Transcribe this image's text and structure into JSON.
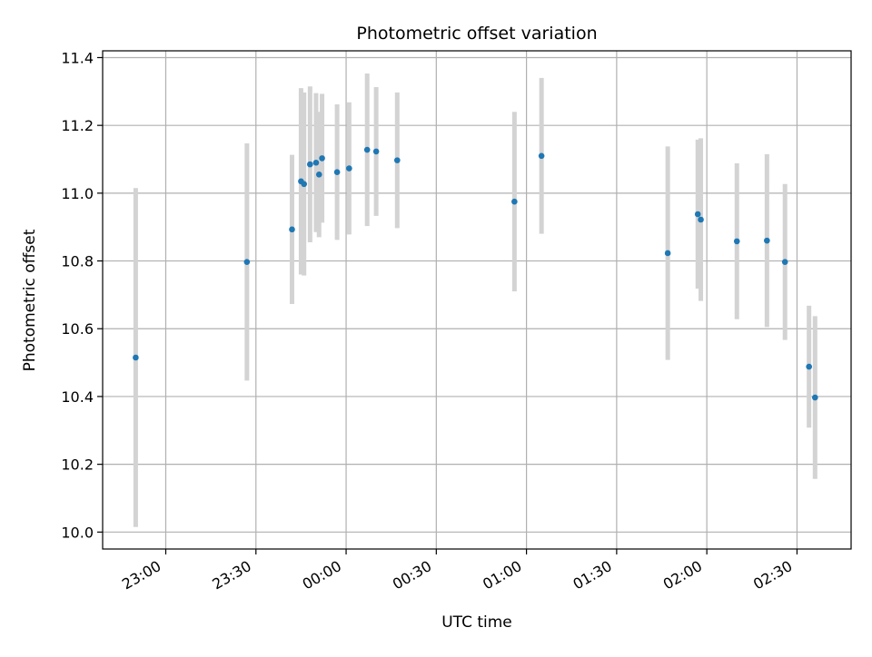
{
  "chart_data": {
    "type": "scatter",
    "title": "Photometric offset variation",
    "xlabel": "UTC time",
    "ylabel": "Photometric offset",
    "x_ticks": [
      "23:00",
      "23:30",
      "00:00",
      "00:30",
      "01:00",
      "01:30",
      "02:00",
      "02:30"
    ],
    "y_ticks": [
      "10.0",
      "10.2",
      "10.4",
      "10.6",
      "10.8",
      "11.0",
      "11.2",
      "11.4"
    ],
    "xlim": [
      "22:39",
      "02:48"
    ],
    "ylim": [
      9.95,
      11.42
    ],
    "grid": true,
    "point_color": "#1f77b4",
    "errorbar_color": "#d3d3d3",
    "points": [
      {
        "x": "22:50",
        "y": 10.515,
        "err": 0.5
      },
      {
        "x": "23:27",
        "y": 10.797,
        "err": 0.35
      },
      {
        "x": "23:42",
        "y": 10.893,
        "err": 0.22
      },
      {
        "x": "23:45",
        "y": 11.035,
        "err": 0.275
      },
      {
        "x": "23:46",
        "y": 11.027,
        "err": 0.27
      },
      {
        "x": "23:48",
        "y": 11.085,
        "err": 0.23
      },
      {
        "x": "23:50",
        "y": 11.09,
        "err": 0.205
      },
      {
        "x": "23:51",
        "y": 11.055,
        "err": 0.185
      },
      {
        "x": "23:52",
        "y": 11.103,
        "err": 0.19
      },
      {
        "x": "23:57",
        "y": 11.062,
        "err": 0.2
      },
      {
        "x": "00:01",
        "y": 11.073,
        "err": 0.195
      },
      {
        "x": "00:07",
        "y": 11.128,
        "err": 0.225
      },
      {
        "x": "00:10",
        "y": 11.123,
        "err": 0.19
      },
      {
        "x": "00:17",
        "y": 11.097,
        "err": 0.2
      },
      {
        "x": "00:56",
        "y": 10.975,
        "err": 0.265
      },
      {
        "x": "01:05",
        "y": 11.11,
        "err": 0.23
      },
      {
        "x": "01:47",
        "y": 10.823,
        "err": 0.315
      },
      {
        "x": "01:57",
        "y": 10.938,
        "err": 0.22
      },
      {
        "x": "01:58",
        "y": 10.922,
        "err": 0.24
      },
      {
        "x": "02:10",
        "y": 10.858,
        "err": 0.23
      },
      {
        "x": "02:20",
        "y": 10.86,
        "err": 0.255
      },
      {
        "x": "02:26",
        "y": 10.797,
        "err": 0.23
      },
      {
        "x": "02:34",
        "y": 10.488,
        "err": 0.18
      },
      {
        "x": "02:36",
        "y": 10.397,
        "err": 0.24
      }
    ]
  }
}
